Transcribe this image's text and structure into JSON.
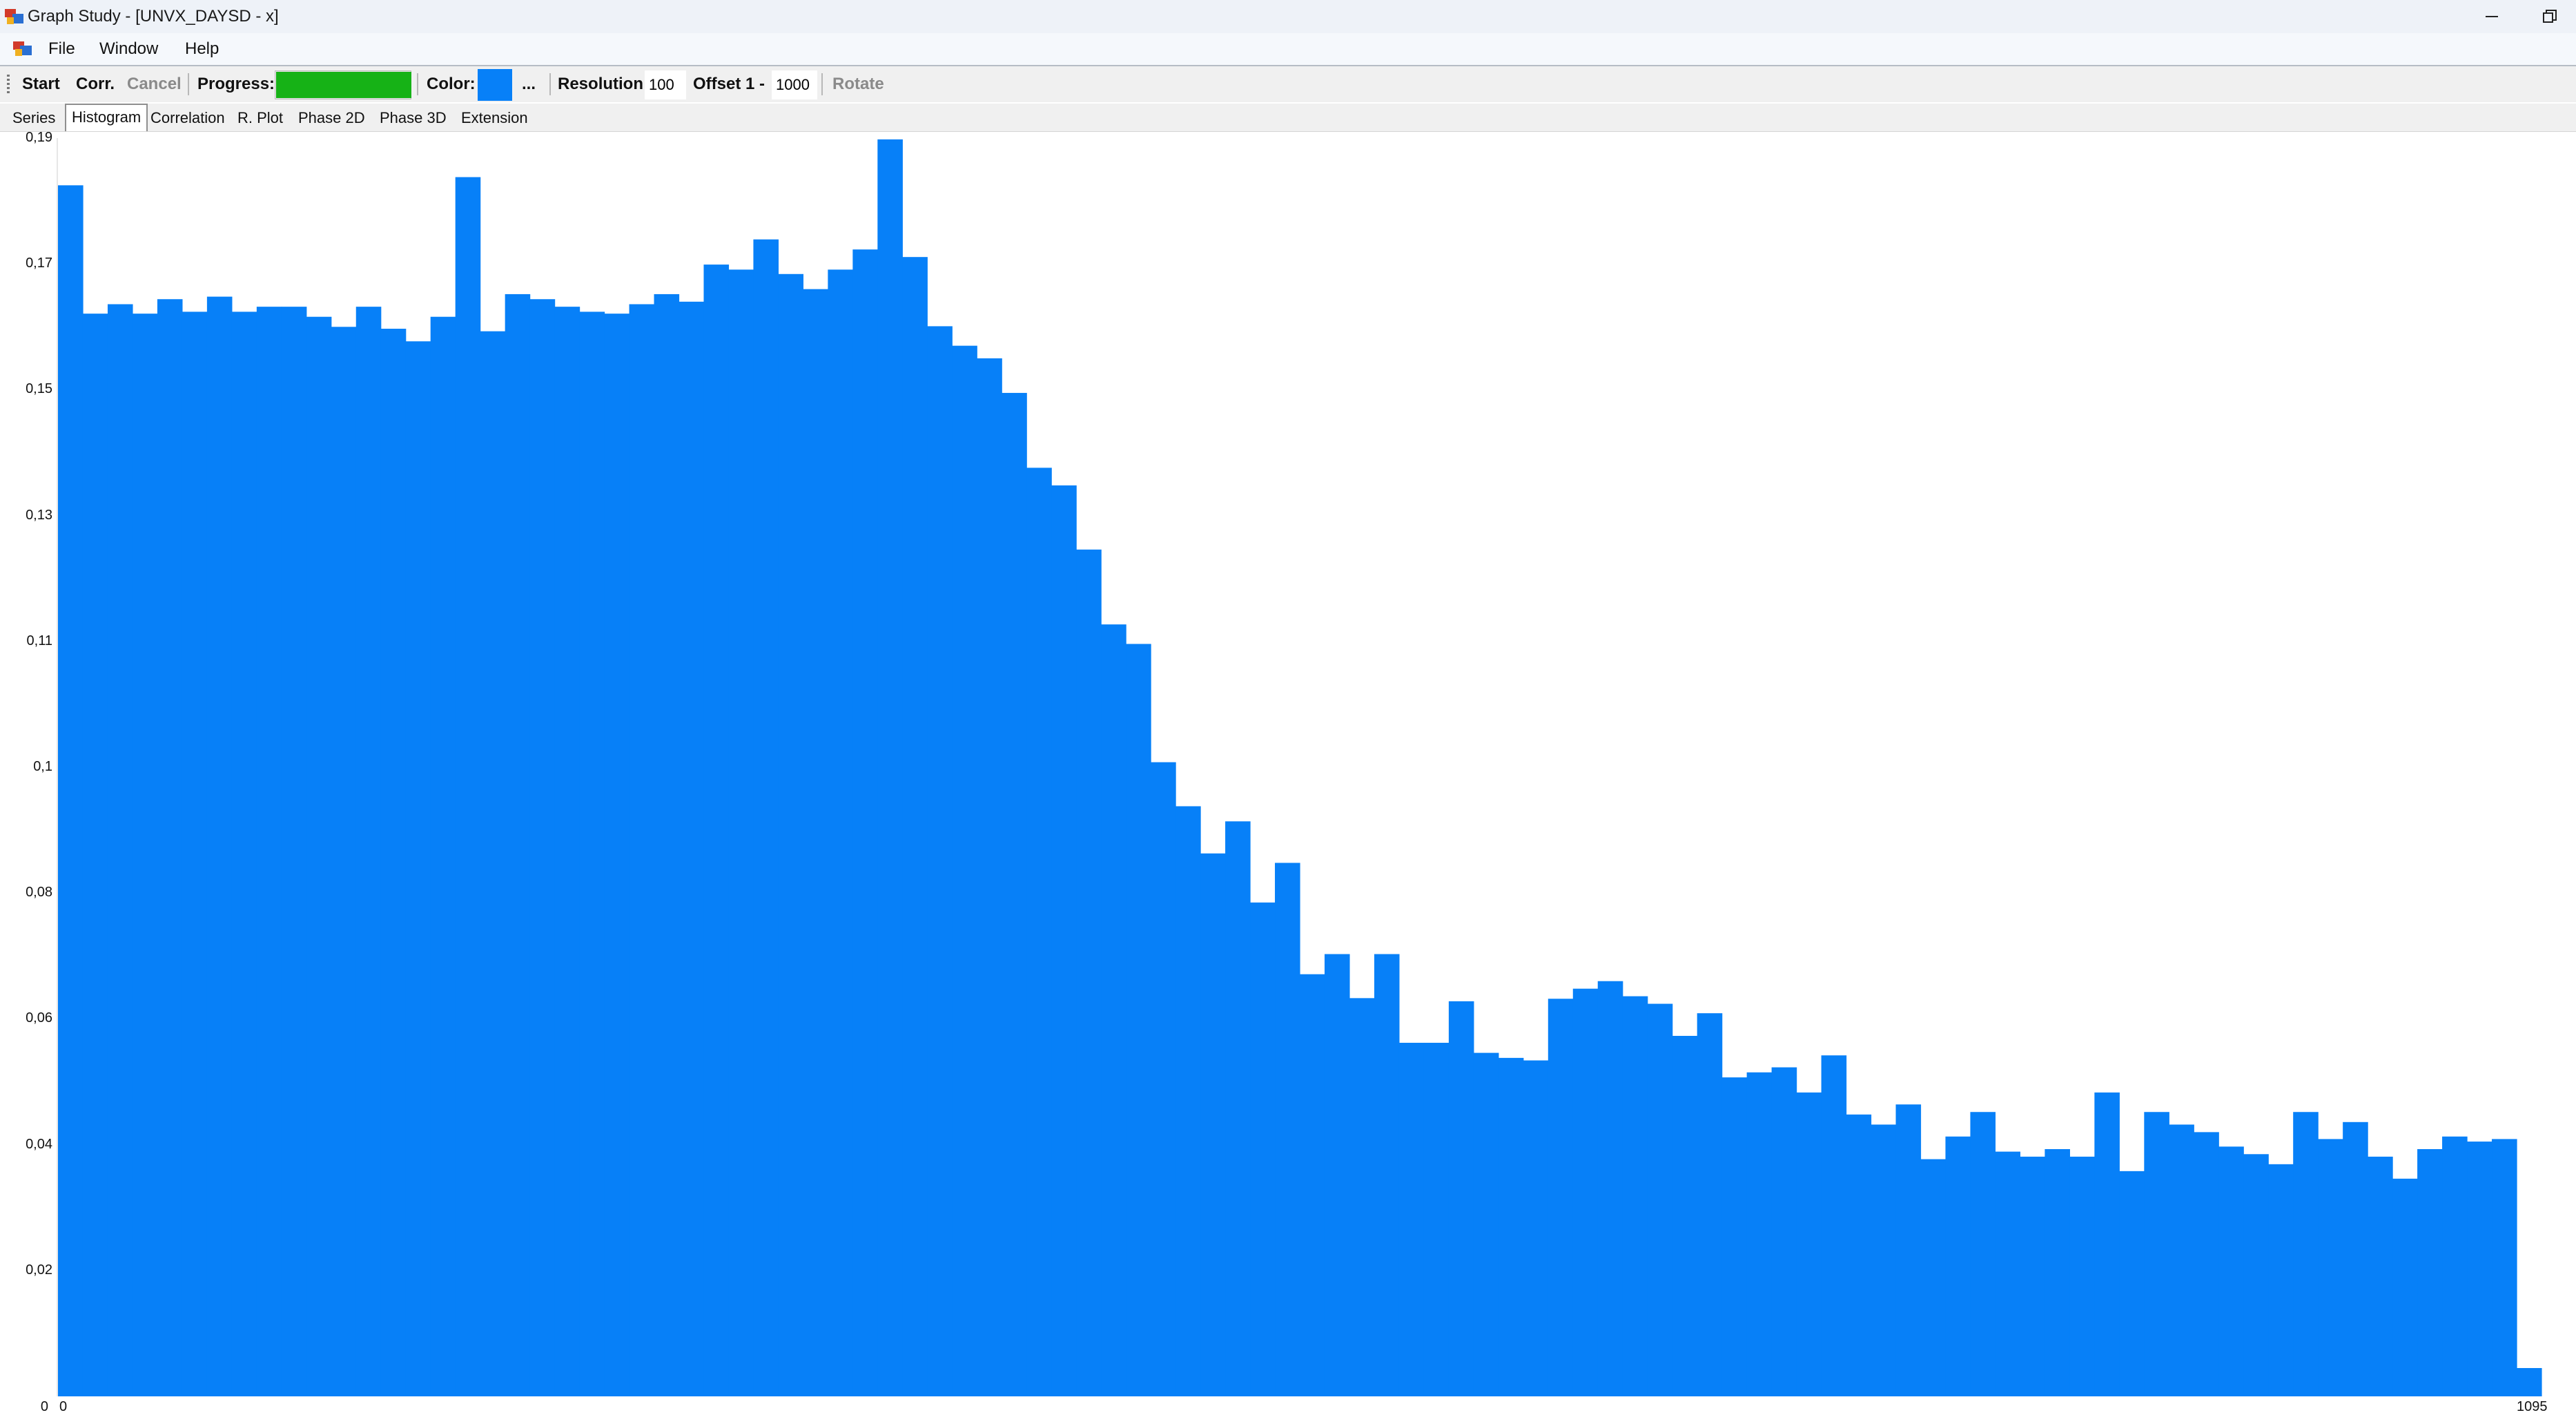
{
  "window": {
    "title": "Graph Study - [UNVX_DAYSD - x]"
  },
  "menu": {
    "items": [
      "File",
      "Window",
      "Help"
    ]
  },
  "toolbar": {
    "start_label": "Start",
    "corr_label": "Corr.",
    "cancel_label": "Cancel",
    "progress_label": "Progress:",
    "progress_value": 1.0,
    "progress_color": "#16b216",
    "color_label": "Color:",
    "color_value": "#0780f8",
    "color_more_label": "...",
    "resolution_label": "Resolution",
    "resolution_value": "100",
    "offset_label": "Offset 1 -",
    "offset_value": "1000",
    "rotate_label": "Rotate"
  },
  "tabs": [
    "Series",
    "Histogram",
    "Correlation",
    "R. Plot",
    "Phase 2D",
    "Phase 3D",
    "Extension"
  ],
  "active_tab": "Histogram",
  "chart_data": {
    "type": "bar",
    "title": "",
    "xlabel": "",
    "ylabel": "",
    "xlim": [
      0,
      1095
    ],
    "ylim": [
      0,
      0.2
    ],
    "x_tick_labels": [
      "0",
      "1095"
    ],
    "y_tick_labels": [
      "0",
      "0,02",
      "0,04",
      "0,06",
      "0,08",
      "0,1",
      "0,11",
      "0,13",
      "0,15",
      "0,17",
      "0,19"
    ],
    "bar_color": "#0780f8",
    "grid": false,
    "values": [
      0.1925,
      0.1721,
      0.1736,
      0.1721,
      0.1744,
      0.1724,
      0.1748,
      0.1724,
      0.1732,
      0.1732,
      0.1716,
      0.17,
      0.1732,
      0.1697,
      0.1677,
      0.1716,
      0.1938,
      0.1693,
      0.1752,
      0.1744,
      0.1732,
      0.1724,
      0.1721,
      0.1736,
      0.1752,
      0.174,
      0.1799,
      0.1791,
      0.1839,
      0.1784,
      0.176,
      0.1791,
      0.1823,
      0.1998,
      0.1811,
      0.1701,
      0.167,
      0.165,
      0.1595,
      0.1476,
      0.1448,
      0.1346,
      0.1227,
      0.1196,
      0.1008,
      0.0938,
      0.0863,
      0.0914,
      0.0785,
      0.0848,
      0.0671,
      0.0703,
      0.0633,
      0.0703,
      0.0562,
      0.0562,
      0.0628,
      0.0546,
      0.0538,
      0.0534,
      0.0632,
      0.0648,
      0.066,
      0.0636,
      0.0624,
      0.0573,
      0.0609,
      0.0507,
      0.0515,
      0.0523,
      0.0483,
      0.0542,
      0.0448,
      0.0432,
      0.0464,
      0.0377,
      0.0413,
      0.0452,
      0.0389,
      0.0381,
      0.0393,
      0.0381,
      0.0483,
      0.0358,
      0.0452,
      0.0432,
      0.042,
      0.0397,
      0.0385,
      0.0369,
      0.0452,
      0.0409,
      0.0436,
      0.0381,
      0.0346,
      0.0393,
      0.0413,
      0.0405,
      0.0409,
      0.0045
    ]
  }
}
